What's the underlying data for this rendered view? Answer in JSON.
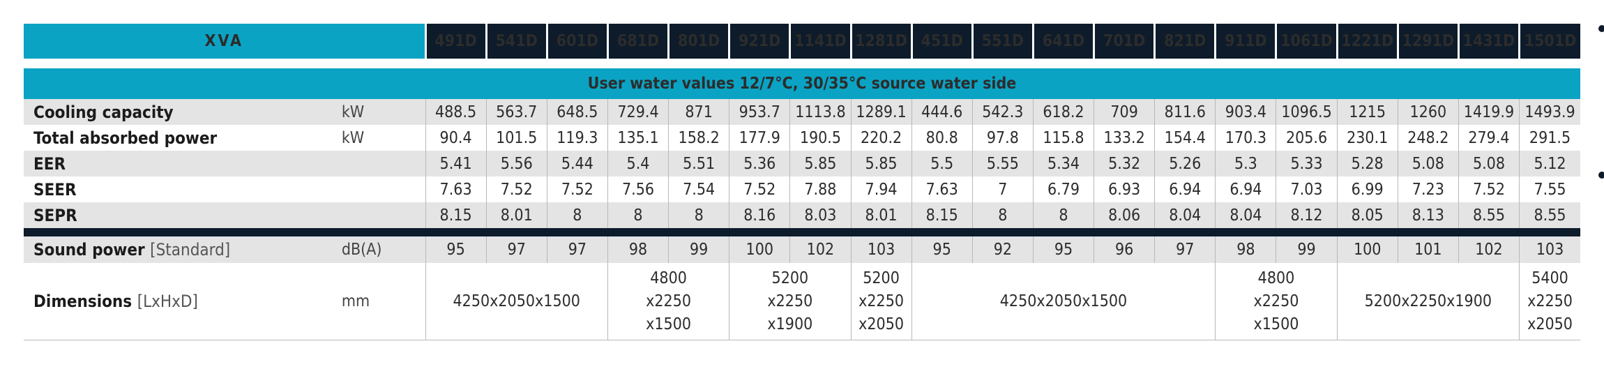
{
  "table": {
    "brand": "XVA",
    "models": [
      "491D",
      "541D",
      "601D",
      "681D",
      "801D",
      "921D",
      "1141D",
      "1281D",
      "451D",
      "551D",
      "641D",
      "701D",
      "821D",
      "911D",
      "1061D",
      "1221D",
      "1291D",
      "1431D",
      "1501D"
    ],
    "section_title": "User water values 12/7°C, 30/35°C source water side",
    "rows": [
      {
        "label": "Cooling capacity",
        "unit": "kW",
        "values": [
          "488.5",
          "563.7",
          "648.5",
          "729.4",
          "871",
          "953.7",
          "1113.8",
          "1289.1",
          "444.6",
          "542.3",
          "618.2",
          "709",
          "811.6",
          "903.4",
          "1096.5",
          "1215",
          "1260",
          "1419.9",
          "1493.9"
        ]
      },
      {
        "label": "Total absorbed power",
        "unit": "kW",
        "values": [
          "90.4",
          "101.5",
          "119.3",
          "135.1",
          "158.2",
          "177.9",
          "190.5",
          "220.2",
          "80.8",
          "97.8",
          "115.8",
          "133.2",
          "154.4",
          "170.3",
          "205.6",
          "230.1",
          "248.2",
          "279.4",
          "291.5"
        ]
      },
      {
        "label": "EER",
        "unit": "",
        "values": [
          "5.41",
          "5.56",
          "5.44",
          "5.4",
          "5.51",
          "5.36",
          "5.85",
          "5.85",
          "5.5",
          "5.55",
          "5.34",
          "5.32",
          "5.26",
          "5.3",
          "5.33",
          "5.28",
          "5.08",
          "5.08",
          "5.12"
        ]
      },
      {
        "label": "SEER",
        "unit": "",
        "values": [
          "7.63",
          "7.52",
          "7.52",
          "7.56",
          "7.54",
          "7.52",
          "7.88",
          "7.94",
          "7.63",
          "7",
          "6.79",
          "6.93",
          "6.94",
          "6.94",
          "7.03",
          "6.99",
          "7.23",
          "7.52",
          "7.55"
        ]
      },
      {
        "label": "SEPR",
        "unit": "",
        "values": [
          "8.15",
          "8.01",
          "8",
          "8",
          "8",
          "8.16",
          "8.03",
          "8.01",
          "8.15",
          "8",
          "8",
          "8.06",
          "8.04",
          "8.04",
          "8.12",
          "8.05",
          "8.13",
          "8.55",
          "8.55"
        ]
      }
    ],
    "sound": {
      "label": "Sound power",
      "note": "[Standard]",
      "unit": "dB(A)",
      "values": [
        "95",
        "97",
        "97",
        "98",
        "99",
        "100",
        "102",
        "103",
        "95",
        "92",
        "95",
        "96",
        "97",
        "98",
        "99",
        "100",
        "101",
        "102",
        "103"
      ]
    },
    "dimensions": {
      "label": "Dimensions",
      "note": "[LxHxD]",
      "unit": "mm",
      "groups": [
        {
          "span": 3,
          "lines": [
            "4250x2050x1500"
          ]
        },
        {
          "span": 2,
          "lines": [
            "4800",
            "x2250",
            "x1500"
          ]
        },
        {
          "span": 2,
          "lines": [
            "5200",
            "x2250",
            "x1900"
          ]
        },
        {
          "span": 1,
          "lines": [
            "5200",
            "x2250",
            "x2050"
          ]
        },
        {
          "span": 5,
          "lines": [
            "4250x2050x1500"
          ]
        },
        {
          "span": 2,
          "lines": [
            "4800",
            "x2250",
            "x1500"
          ]
        },
        {
          "span": 3,
          "lines": [
            "5200x2250x1900"
          ]
        },
        {
          "span": 1,
          "lines": [
            "5400",
            "x2250",
            "x2050"
          ]
        }
      ]
    }
  }
}
